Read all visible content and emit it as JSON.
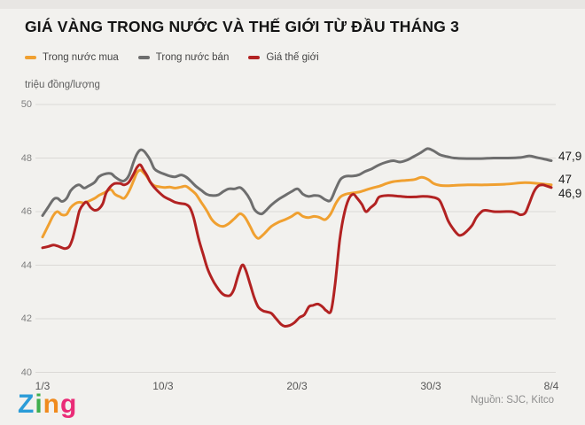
{
  "title": "GIÁ VÀNG TRONG NƯỚC VÀ THẾ GIỚI TỪ ĐẦU THÁNG 3",
  "unit_label": "triệu đồng/lượng",
  "source": "Nguồn: SJC, Kitco",
  "logo": {
    "letters": [
      {
        "char": "Z",
        "color": "#2b9cd8"
      },
      {
        "char": "i",
        "color": "#3fae4e"
      },
      {
        "char": "n",
        "color": "#f08a1d"
      },
      {
        "char": "g",
        "color": "#ea2c77"
      }
    ]
  },
  "colors": {
    "background": "#f2f1ee",
    "gridline": "#dbd9d6",
    "buy_line": "#f0a030",
    "sell_line": "#6e6e6e",
    "world_line": "#b22222"
  },
  "chart_data": {
    "type": "line",
    "title": "GIÁ VÀNG TRONG NƯỚC VÀ THẾ GIỚI TỪ ĐẦU THÁNG 3",
    "ylabel": "triệu đồng/lượng",
    "ylim": [
      40,
      50
    ],
    "yticks": [
      50,
      48,
      46,
      44,
      42,
      40
    ],
    "grid": true,
    "legend_position": "top-left",
    "x_axis_days_from_1_3": [
      0,
      38
    ],
    "xticks": [
      {
        "day": 0,
        "label": "1/3"
      },
      {
        "day": 9,
        "label": "10/3"
      },
      {
        "day": 19,
        "label": "20/3"
      },
      {
        "day": 29,
        "label": "30/3"
      },
      {
        "day": 38,
        "label": "8/4"
      }
    ],
    "series": [
      {
        "name": "Trong nước mua",
        "color": "#f0a030",
        "end_label": "47",
        "points": [
          [
            0,
            45.05
          ],
          [
            0.4,
            45.45
          ],
          [
            0.8,
            45.85
          ],
          [
            1.1,
            46.0
          ],
          [
            1.45,
            45.88
          ],
          [
            1.8,
            45.9
          ],
          [
            2.1,
            46.15
          ],
          [
            2.45,
            46.3
          ],
          [
            2.75,
            46.35
          ],
          [
            3.1,
            46.32
          ],
          [
            3.4,
            46.38
          ],
          [
            3.9,
            46.5
          ],
          [
            4.2,
            46.6
          ],
          [
            4.6,
            46.7
          ],
          [
            5.1,
            46.82
          ],
          [
            5.4,
            46.65
          ],
          [
            5.8,
            46.55
          ],
          [
            6.1,
            46.5
          ],
          [
            6.45,
            46.75
          ],
          [
            6.8,
            47.15
          ],
          [
            7.05,
            47.45
          ],
          [
            7.3,
            47.55
          ],
          [
            7.55,
            47.45
          ],
          [
            7.8,
            47.3
          ],
          [
            8.05,
            47.1
          ],
          [
            8.35,
            46.97
          ],
          [
            8.7,
            46.93
          ],
          [
            9.1,
            46.9
          ],
          [
            9.5,
            46.92
          ],
          [
            9.9,
            46.88
          ],
          [
            10.35,
            46.92
          ],
          [
            10.7,
            46.95
          ],
          [
            11.05,
            46.83
          ],
          [
            11.45,
            46.65
          ],
          [
            11.85,
            46.35
          ],
          [
            12.25,
            46.05
          ],
          [
            12.65,
            45.7
          ],
          [
            13.1,
            45.5
          ],
          [
            13.5,
            45.45
          ],
          [
            13.9,
            45.55
          ],
          [
            14.35,
            45.75
          ],
          [
            14.75,
            45.92
          ],
          [
            15.1,
            45.8
          ],
          [
            15.5,
            45.45
          ],
          [
            15.8,
            45.15
          ],
          [
            16.1,
            45.0
          ],
          [
            16.4,
            45.1
          ],
          [
            16.7,
            45.25
          ],
          [
            17.1,
            45.45
          ],
          [
            17.6,
            45.6
          ],
          [
            18.1,
            45.7
          ],
          [
            18.6,
            45.82
          ],
          [
            19.05,
            45.95
          ],
          [
            19.45,
            45.82
          ],
          [
            19.85,
            45.78
          ],
          [
            20.3,
            45.82
          ],
          [
            20.7,
            45.78
          ],
          [
            21.1,
            45.7
          ],
          [
            21.5,
            45.9
          ],
          [
            21.9,
            46.3
          ],
          [
            22.25,
            46.55
          ],
          [
            22.65,
            46.65
          ],
          [
            23.2,
            46.7
          ],
          [
            23.65,
            46.73
          ],
          [
            24.1,
            46.8
          ],
          [
            24.6,
            46.88
          ],
          [
            25.15,
            46.95
          ],
          [
            25.7,
            47.05
          ],
          [
            26.2,
            47.12
          ],
          [
            26.7,
            47.15
          ],
          [
            27.2,
            47.17
          ],
          [
            27.8,
            47.2
          ],
          [
            28.3,
            47.28
          ],
          [
            28.8,
            47.2
          ],
          [
            29.2,
            47.05
          ],
          [
            29.7,
            46.98
          ],
          [
            30.25,
            46.97
          ],
          [
            30.75,
            46.98
          ],
          [
            31.75,
            47.0
          ],
          [
            33,
            47.0
          ],
          [
            34.5,
            47.02
          ],
          [
            36,
            47.08
          ],
          [
            37,
            47.05
          ],
          [
            38,
            47.0
          ]
        ]
      },
      {
        "name": "Trong nước bán",
        "color": "#6e6e6e",
        "end_label": "47,9",
        "points": [
          [
            0,
            45.85
          ],
          [
            0.4,
            46.15
          ],
          [
            0.8,
            46.45
          ],
          [
            1.1,
            46.5
          ],
          [
            1.45,
            46.38
          ],
          [
            1.8,
            46.5
          ],
          [
            2.1,
            46.78
          ],
          [
            2.45,
            46.95
          ],
          [
            2.75,
            47.0
          ],
          [
            3.1,
            46.88
          ],
          [
            3.4,
            46.95
          ],
          [
            3.9,
            47.1
          ],
          [
            4.2,
            47.3
          ],
          [
            4.6,
            47.4
          ],
          [
            5.1,
            47.42
          ],
          [
            5.4,
            47.3
          ],
          [
            5.8,
            47.17
          ],
          [
            6.1,
            47.15
          ],
          [
            6.45,
            47.35
          ],
          [
            6.8,
            47.85
          ],
          [
            7.05,
            48.15
          ],
          [
            7.3,
            48.3
          ],
          [
            7.55,
            48.27
          ],
          [
            7.8,
            48.12
          ],
          [
            8.05,
            47.92
          ],
          [
            8.35,
            47.6
          ],
          [
            8.7,
            47.48
          ],
          [
            9.1,
            47.4
          ],
          [
            9.5,
            47.33
          ],
          [
            9.9,
            47.3
          ],
          [
            10.35,
            47.37
          ],
          [
            10.7,
            47.3
          ],
          [
            11.05,
            47.15
          ],
          [
            11.45,
            46.95
          ],
          [
            11.85,
            46.8
          ],
          [
            12.25,
            46.65
          ],
          [
            12.65,
            46.6
          ],
          [
            13.1,
            46.62
          ],
          [
            13.5,
            46.75
          ],
          [
            13.9,
            46.85
          ],
          [
            14.35,
            46.85
          ],
          [
            14.75,
            46.9
          ],
          [
            15.1,
            46.75
          ],
          [
            15.5,
            46.45
          ],
          [
            15.8,
            46.1
          ],
          [
            16.1,
            45.95
          ],
          [
            16.4,
            45.92
          ],
          [
            16.7,
            46.05
          ],
          [
            17.1,
            46.25
          ],
          [
            17.6,
            46.45
          ],
          [
            18.1,
            46.6
          ],
          [
            18.6,
            46.75
          ],
          [
            19.05,
            46.85
          ],
          [
            19.45,
            46.65
          ],
          [
            19.85,
            46.57
          ],
          [
            20.3,
            46.6
          ],
          [
            20.7,
            46.58
          ],
          [
            21.1,
            46.45
          ],
          [
            21.5,
            46.42
          ],
          [
            21.9,
            46.85
          ],
          [
            22.25,
            47.2
          ],
          [
            22.65,
            47.32
          ],
          [
            23.2,
            47.33
          ],
          [
            23.65,
            47.38
          ],
          [
            24.1,
            47.5
          ],
          [
            24.6,
            47.6
          ],
          [
            25.15,
            47.75
          ],
          [
            25.7,
            47.85
          ],
          [
            26.2,
            47.9
          ],
          [
            26.7,
            47.85
          ],
          [
            27.2,
            47.92
          ],
          [
            27.7,
            48.05
          ],
          [
            28.25,
            48.2
          ],
          [
            28.75,
            48.35
          ],
          [
            29.2,
            48.27
          ],
          [
            29.7,
            48.12
          ],
          [
            30.25,
            48.05
          ],
          [
            30.75,
            48.0
          ],
          [
            31.75,
            47.98
          ],
          [
            32.75,
            47.98
          ],
          [
            33.7,
            48.0
          ],
          [
            34.7,
            48.0
          ],
          [
            35.7,
            48.02
          ],
          [
            36.35,
            48.08
          ],
          [
            36.9,
            48.02
          ],
          [
            37.4,
            47.97
          ],
          [
            38,
            47.9
          ]
        ]
      },
      {
        "name": "Giá thế giới",
        "color": "#b22222",
        "end_label": "46,9",
        "points": [
          [
            0,
            44.65
          ],
          [
            0.45,
            44.7
          ],
          [
            0.8,
            44.75
          ],
          [
            1.1,
            44.72
          ],
          [
            1.45,
            44.65
          ],
          [
            1.7,
            44.62
          ],
          [
            2.0,
            44.7
          ],
          [
            2.25,
            45.0
          ],
          [
            2.5,
            45.5
          ],
          [
            2.77,
            46.05
          ],
          [
            3.1,
            46.3
          ],
          [
            3.3,
            46.35
          ],
          [
            3.6,
            46.15
          ],
          [
            3.9,
            46.05
          ],
          [
            4.2,
            46.1
          ],
          [
            4.5,
            46.3
          ],
          [
            4.75,
            46.7
          ],
          [
            5.1,
            46.95
          ],
          [
            5.4,
            47.05
          ],
          [
            5.8,
            47.05
          ],
          [
            6.1,
            47.0
          ],
          [
            6.45,
            47.1
          ],
          [
            6.8,
            47.4
          ],
          [
            7.05,
            47.65
          ],
          [
            7.3,
            47.75
          ],
          [
            7.55,
            47.55
          ],
          [
            7.8,
            47.35
          ],
          [
            8.05,
            47.1
          ],
          [
            8.35,
            46.9
          ],
          [
            8.7,
            46.72
          ],
          [
            9.1,
            46.55
          ],
          [
            9.5,
            46.45
          ],
          [
            9.9,
            46.35
          ],
          [
            10.35,
            46.3
          ],
          [
            10.7,
            46.27
          ],
          [
            11.0,
            46.15
          ],
          [
            11.3,
            45.75
          ],
          [
            11.65,
            45.0
          ],
          [
            12.0,
            44.4
          ],
          [
            12.3,
            43.9
          ],
          [
            12.65,
            43.5
          ],
          [
            13.0,
            43.2
          ],
          [
            13.3,
            43.0
          ],
          [
            13.6,
            42.88
          ],
          [
            14.0,
            42.87
          ],
          [
            14.3,
            43.1
          ],
          [
            14.6,
            43.6
          ],
          [
            14.9,
            44.0
          ],
          [
            15.15,
            43.85
          ],
          [
            15.5,
            43.3
          ],
          [
            15.8,
            42.8
          ],
          [
            16.1,
            42.45
          ],
          [
            16.45,
            42.3
          ],
          [
            16.8,
            42.25
          ],
          [
            17.1,
            42.2
          ],
          [
            17.45,
            42.0
          ],
          [
            17.8,
            41.8
          ],
          [
            18.1,
            41.72
          ],
          [
            18.45,
            41.75
          ],
          [
            18.8,
            41.85
          ],
          [
            19.2,
            42.05
          ],
          [
            19.55,
            42.15
          ],
          [
            19.9,
            42.45
          ],
          [
            20.2,
            42.5
          ],
          [
            20.55,
            42.55
          ],
          [
            20.9,
            42.45
          ],
          [
            21.2,
            42.3
          ],
          [
            21.55,
            42.3
          ],
          [
            21.85,
            43.3
          ],
          [
            22.2,
            44.95
          ],
          [
            22.5,
            45.85
          ],
          [
            22.85,
            46.45
          ],
          [
            23.2,
            46.65
          ],
          [
            23.5,
            46.5
          ],
          [
            23.85,
            46.27
          ],
          [
            24.15,
            46.0
          ],
          [
            24.5,
            46.15
          ],
          [
            24.85,
            46.3
          ],
          [
            25.15,
            46.55
          ],
          [
            25.8,
            46.6
          ],
          [
            26.5,
            46.58
          ],
          [
            27.2,
            46.55
          ],
          [
            27.8,
            46.55
          ],
          [
            28.4,
            46.57
          ],
          [
            29.0,
            46.55
          ],
          [
            29.6,
            46.45
          ],
          [
            29.95,
            46.1
          ],
          [
            30.3,
            45.65
          ],
          [
            30.75,
            45.3
          ],
          [
            31.1,
            45.12
          ],
          [
            31.4,
            45.15
          ],
          [
            31.75,
            45.3
          ],
          [
            32.1,
            45.5
          ],
          [
            32.4,
            45.78
          ],
          [
            32.75,
            45.98
          ],
          [
            33.05,
            46.05
          ],
          [
            33.7,
            46.0
          ],
          [
            34.4,
            46.0
          ],
          [
            35.05,
            46.0
          ],
          [
            35.4,
            45.95
          ],
          [
            35.7,
            45.88
          ],
          [
            36.05,
            45.95
          ],
          [
            36.35,
            46.3
          ],
          [
            36.7,
            46.74
          ],
          [
            37.0,
            46.95
          ],
          [
            37.35,
            47.0
          ],
          [
            37.7,
            46.95
          ],
          [
            38,
            46.9
          ]
        ]
      }
    ]
  }
}
